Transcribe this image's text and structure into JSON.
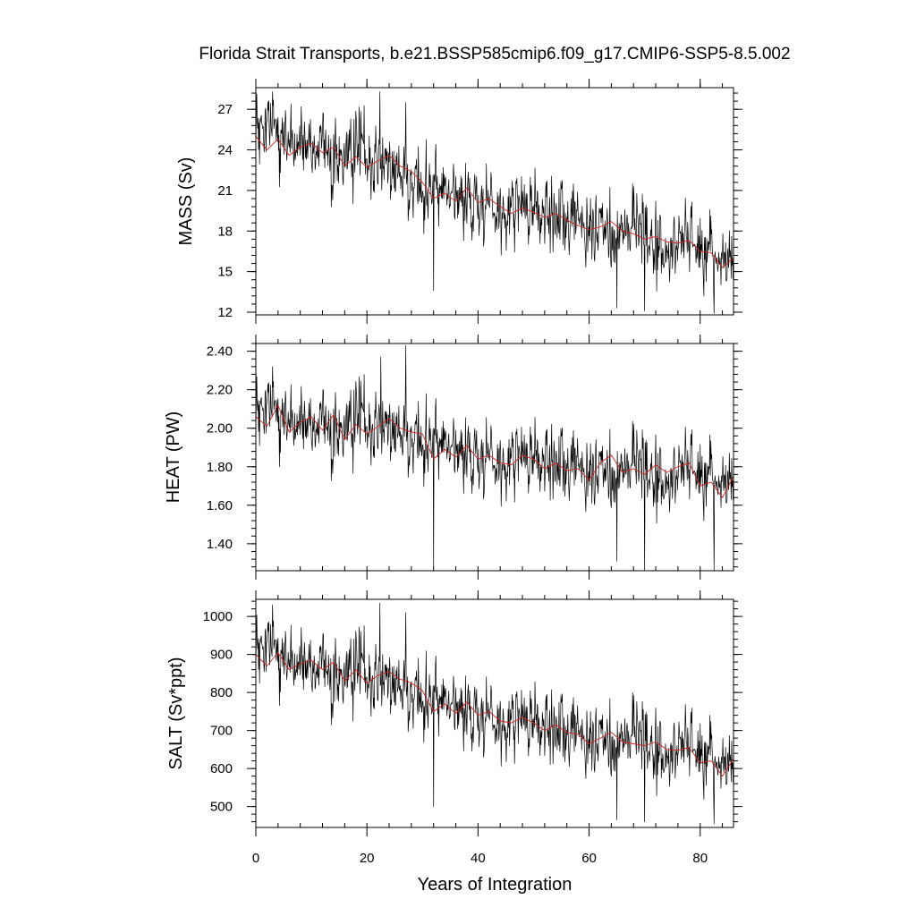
{
  "title": "Florida Strait Transports, b.e21.BSSP585cmip6.f09_g17.CMIP6-SSP5-8.5.002",
  "colors": {
    "raw": "#000000",
    "smoothed": "#d42020"
  },
  "chart_data": [
    {
      "type": "line",
      "ylabel": "MASS (Sv)",
      "xlim": [
        0,
        86
      ],
      "ylim": [
        11.8,
        28.6
      ],
      "yticks": [
        12,
        15,
        18,
        21,
        24,
        27
      ],
      "ytick_labels": [
        "12",
        "15",
        "18",
        "21",
        "24",
        "27"
      ],
      "xticks": [
        0,
        20,
        40,
        60,
        80
      ],
      "series": [
        {
          "role": "monthly",
          "color": "#000000",
          "trend_points": {
            "x": [
              0,
              10,
              20,
              30,
              40,
              50,
              60,
              70,
              80,
              86
            ],
            "y": [
              25.0,
              24.3,
              23.2,
              21.6,
              20.2,
              19.4,
              18.4,
              17.5,
              16.7,
              15.8
            ]
          },
          "noise_sd": 1.3,
          "spikes": [
            [
              3,
              28.3
            ],
            [
              22.3,
              28.3
            ],
            [
              27,
              27.5
            ],
            [
              32,
              13.6
            ],
            [
              65,
              12.3
            ],
            [
              70,
              12.1
            ],
            [
              82.5,
              11.9
            ]
          ]
        },
        {
          "role": "smoothed",
          "color": "#d42020",
          "x": [
            0,
            2,
            4,
            6,
            8,
            10,
            12,
            14,
            16,
            18,
            20,
            22,
            24,
            26,
            28,
            30,
            32,
            34,
            36,
            38,
            40,
            42,
            44,
            46,
            48,
            50,
            52,
            54,
            56,
            58,
            60,
            62,
            64,
            66,
            68,
            70,
            72,
            74,
            76,
            78,
            80,
            82,
            84,
            86
          ],
          "y": [
            25.0,
            24.0,
            24.8,
            23.6,
            24.2,
            24.5,
            23.8,
            24.2,
            22.8,
            23.5,
            22.7,
            23.2,
            23.6,
            22.8,
            22.4,
            21.6,
            20.4,
            20.8,
            20.2,
            21.2,
            20.1,
            20.4,
            19.8,
            19.3,
            19.7,
            19.4,
            19.0,
            19.3,
            18.8,
            18.4,
            18.1,
            18.3,
            18.7,
            18.0,
            17.8,
            17.4,
            17.6,
            17.2,
            17.1,
            17.3,
            16.5,
            16.4,
            15.3,
            16.0
          ]
        }
      ]
    },
    {
      "type": "line",
      "ylabel": "HEAT (PW)",
      "xlim": [
        0,
        86
      ],
      "ylim": [
        1.26,
        2.44
      ],
      "yticks": [
        1.4,
        1.6,
        1.8,
        2.0,
        2.2,
        2.4
      ],
      "ytick_labels": [
        "1.40",
        "1.60",
        "1.80",
        "2.00",
        "2.20",
        "2.40"
      ],
      "xticks": [
        0,
        20,
        40,
        60,
        80
      ],
      "series": [
        {
          "role": "monthly",
          "color": "#000000",
          "trend_points": {
            "x": [
              0,
              10,
              20,
              30,
              40,
              50,
              60,
              70,
              80,
              86
            ],
            "y": [
              2.05,
              2.02,
              2.0,
              1.96,
              1.86,
              1.83,
              1.78,
              1.77,
              1.76,
              1.72
            ]
          },
          "noise_sd": 0.09,
          "spikes": [
            [
              3,
              2.32
            ],
            [
              22.5,
              2.37
            ],
            [
              27,
              2.43
            ],
            [
              32,
              1.27
            ],
            [
              65,
              1.31
            ],
            [
              70,
              1.26
            ],
            [
              82.5,
              1.26
            ]
          ]
        },
        {
          "role": "smoothed",
          "color": "#d42020",
          "x": [
            0,
            2,
            4,
            6,
            8,
            10,
            12,
            14,
            16,
            18,
            20,
            22,
            24,
            26,
            28,
            30,
            32,
            34,
            36,
            38,
            40,
            42,
            44,
            46,
            48,
            50,
            52,
            54,
            56,
            58,
            60,
            62,
            64,
            66,
            68,
            70,
            72,
            74,
            76,
            78,
            80,
            82,
            84,
            86
          ],
          "y": [
            2.06,
            2.01,
            2.12,
            1.98,
            2.03,
            2.06,
            1.99,
            2.07,
            1.94,
            2.02,
            1.97,
            2.01,
            2.05,
            2.0,
            1.98,
            1.97,
            1.84,
            1.89,
            1.85,
            1.91,
            1.84,
            1.86,
            1.82,
            1.81,
            1.86,
            1.84,
            1.79,
            1.82,
            1.78,
            1.79,
            1.73,
            1.82,
            1.86,
            1.77,
            1.79,
            1.76,
            1.81,
            1.77,
            1.8,
            1.82,
            1.7,
            1.72,
            1.64,
            1.75
          ]
        }
      ]
    },
    {
      "type": "line",
      "ylabel": "SALT (Sv*ppt)",
      "xlim": [
        0,
        86
      ],
      "ylim": [
        445,
        1045
      ],
      "yticks": [
        500,
        600,
        700,
        800,
        900,
        1000
      ],
      "ytick_labels": [
        "500",
        "600",
        "700",
        "800",
        "900",
        "1000"
      ],
      "xticks": [
        0,
        20,
        40,
        60,
        80
      ],
      "xlabel": "Years of Integration",
      "xtick_labels": [
        "0",
        "20",
        "40",
        "60",
        "80"
      ],
      "series": [
        {
          "role": "monthly",
          "color": "#000000",
          "trend_points": {
            "x": [
              0,
              10,
              20,
              30,
              40,
              50,
              60,
              70,
              80,
              86
            ],
            "y": [
              895,
              870,
              835,
              800,
              745,
              715,
              680,
              665,
              640,
              610
            ]
          },
          "noise_sd": 45,
          "spikes": [
            [
              3,
              1030
            ],
            [
              22.3,
              1035
            ],
            [
              27,
              1010
            ],
            [
              32,
              500
            ],
            [
              65,
              465
            ],
            [
              70,
              460
            ],
            [
              82.5,
              455
            ]
          ]
        },
        {
          "role": "smoothed",
          "color": "#d42020",
          "x": [
            0,
            2,
            4,
            6,
            8,
            10,
            12,
            14,
            16,
            18,
            20,
            22,
            24,
            26,
            28,
            30,
            32,
            34,
            36,
            38,
            40,
            42,
            44,
            46,
            48,
            50,
            52,
            54,
            56,
            58,
            60,
            62,
            64,
            66,
            68,
            70,
            72,
            74,
            76,
            78,
            80,
            82,
            84,
            86
          ],
          "y": [
            900,
            870,
            905,
            860,
            875,
            885,
            860,
            880,
            830,
            860,
            825,
            845,
            855,
            835,
            825,
            805,
            750,
            770,
            745,
            775,
            740,
            750,
            725,
            720,
            735,
            720,
            700,
            715,
            695,
            690,
            665,
            680,
            695,
            670,
            665,
            660,
            670,
            650,
            648,
            655,
            615,
            620,
            580,
            625
          ]
        }
      ]
    }
  ]
}
